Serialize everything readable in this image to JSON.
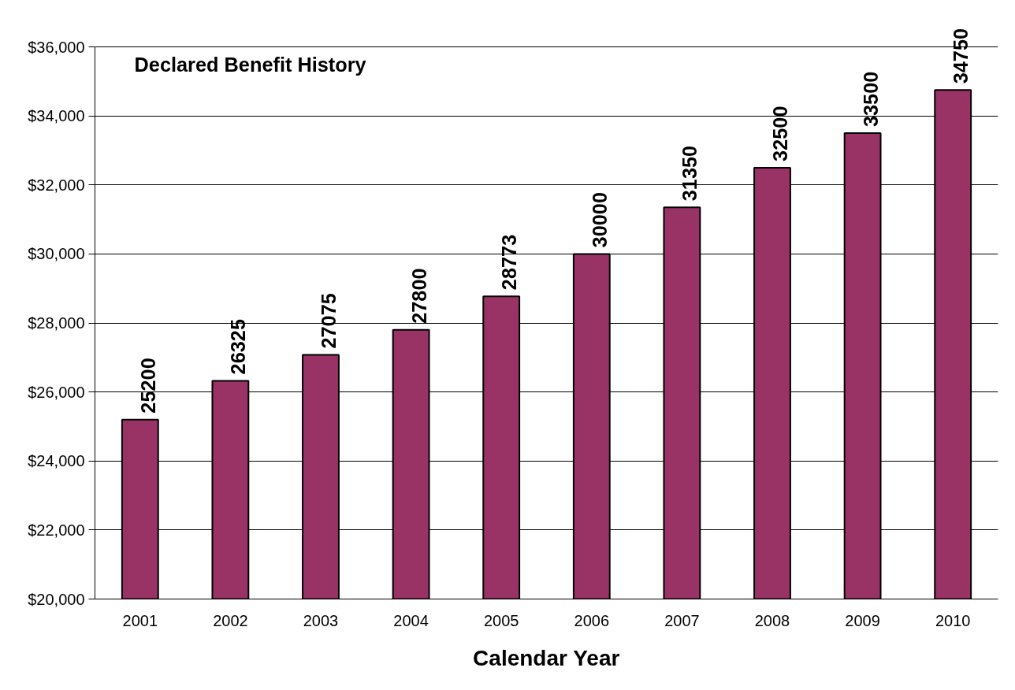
{
  "chart_data": {
    "type": "bar",
    "title": "Declared Benefit History",
    "xlabel": "Calendar Year",
    "categories": [
      "2001",
      "2002",
      "2003",
      "2004",
      "2005",
      "2006",
      "2007",
      "2008",
      "2009",
      "2010"
    ],
    "values": [
      25200,
      26325,
      27075,
      27800,
      28773,
      30000,
      31350,
      32500,
      33500,
      34750
    ],
    "color": "#993366",
    "data_labels": true,
    "grid": "y",
    "ylim": [
      20000,
      36000
    ],
    "yticks": [
      {
        "value": 20000,
        "label": "$20,000"
      },
      {
        "value": 22000,
        "label": "$22,000"
      },
      {
        "value": 24000,
        "label": "$24,000"
      },
      {
        "value": 26000,
        "label": "$26,000"
      },
      {
        "value": 28000,
        "label": "$28,000"
      },
      {
        "value": 30000,
        "label": "$30,000"
      },
      {
        "value": 32000,
        "label": "$32,000"
      },
      {
        "value": 34000,
        "label": "$34,000"
      },
      {
        "value": 36000,
        "label": "$36,000"
      }
    ]
  }
}
